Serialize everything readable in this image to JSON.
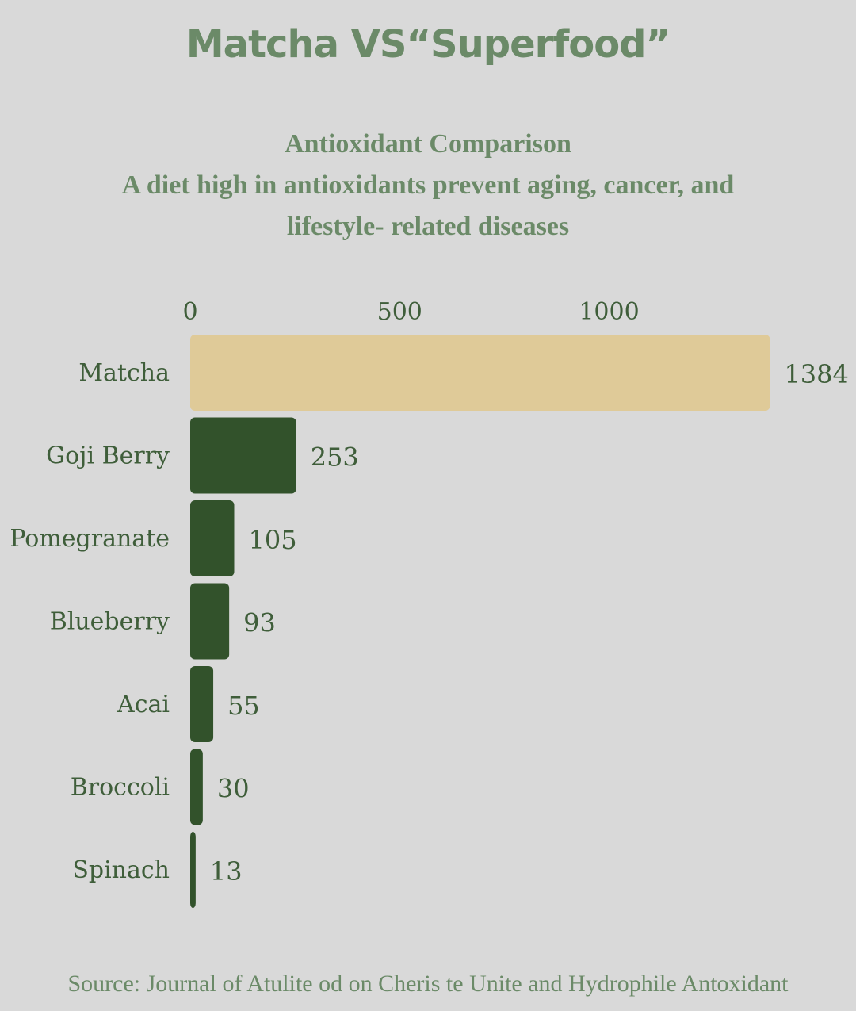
{
  "title": "Matcha VS“Superfood”",
  "subtitle": {
    "line1": "Antioxidant Comparison",
    "line2": "A diet high in antioxidants prevent aging, cancer, and",
    "line3": "lifestyle- related diseases"
  },
  "source": "Source: Journal of Atulite od on Cheris te Unite and Hydrophile Antoxidant",
  "colors": {
    "background": "#d9d9d9",
    "highlight_bar": "#dfca98",
    "bar": "#32522b",
    "title": "#6b8a68",
    "text": "#3f5e3a"
  },
  "chart_data": {
    "type": "bar",
    "orientation": "horizontal",
    "title": "Antioxidant Comparison",
    "categories": [
      "Matcha",
      "Goji Berry",
      "Pomegranate",
      "Blueberry",
      "Acai",
      "Broccoli",
      "Spinach"
    ],
    "values": [
      1384,
      253,
      105,
      93,
      55,
      30,
      13
    ],
    "highlight": "Matcha",
    "xaxis": {
      "position": "top",
      "ticks": [
        0,
        500,
        1000
      ],
      "range": [
        0,
        1384
      ]
    },
    "xlabel": "",
    "ylabel": "",
    "grid": false,
    "data_labels": true
  }
}
